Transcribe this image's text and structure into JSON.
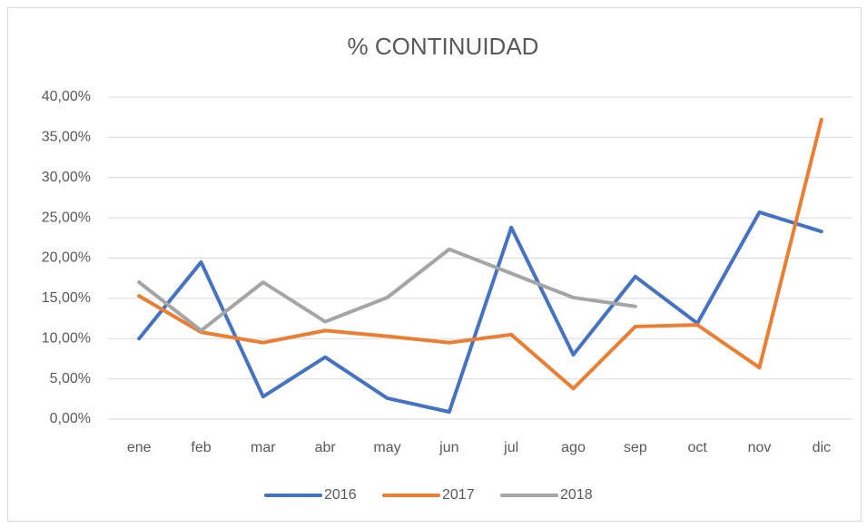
{
  "chart_data": {
    "type": "line",
    "title": "% CONTINUIDAD",
    "categories": [
      "ene",
      "feb",
      "mar",
      "abr",
      "may",
      "jun",
      "jul",
      "ago",
      "sep",
      "oct",
      "nov",
      "dic"
    ],
    "series": [
      {
        "name": "2016",
        "color": "#4472c4",
        "values": [
          10.0,
          19.5,
          2.8,
          7.7,
          2.6,
          0.9,
          23.8,
          8.0,
          17.7,
          11.9,
          25.7,
          23.3
        ]
      },
      {
        "name": "2017",
        "color": "#ed7d31",
        "values": [
          15.3,
          10.8,
          9.5,
          11.0,
          10.3,
          9.5,
          10.5,
          3.8,
          11.5,
          11.7,
          6.4,
          37.2
        ]
      },
      {
        "name": "2018",
        "color": "#a5a5a5",
        "values": [
          17.0,
          11.0,
          17.0,
          12.1,
          15.1,
          21.1,
          18.1,
          15.1,
          14.0,
          null,
          null,
          null
        ]
      }
    ],
    "ylim": [
      0,
      40
    ],
    "yticks": [
      {
        "value": 0,
        "label": "0,00%"
      },
      {
        "value": 5,
        "label": "5,00%"
      },
      {
        "value": 10,
        "label": "10,00%"
      },
      {
        "value": 15,
        "label": "15,00%"
      },
      {
        "value": 20,
        "label": "20,00%"
      },
      {
        "value": 25,
        "label": "25,00%"
      },
      {
        "value": 30,
        "label": "30,00%"
      },
      {
        "value": 35,
        "label": "35,00%"
      },
      {
        "value": 40,
        "label": "40,00%"
      }
    ],
    "grid": true,
    "legend": "bottom"
  }
}
